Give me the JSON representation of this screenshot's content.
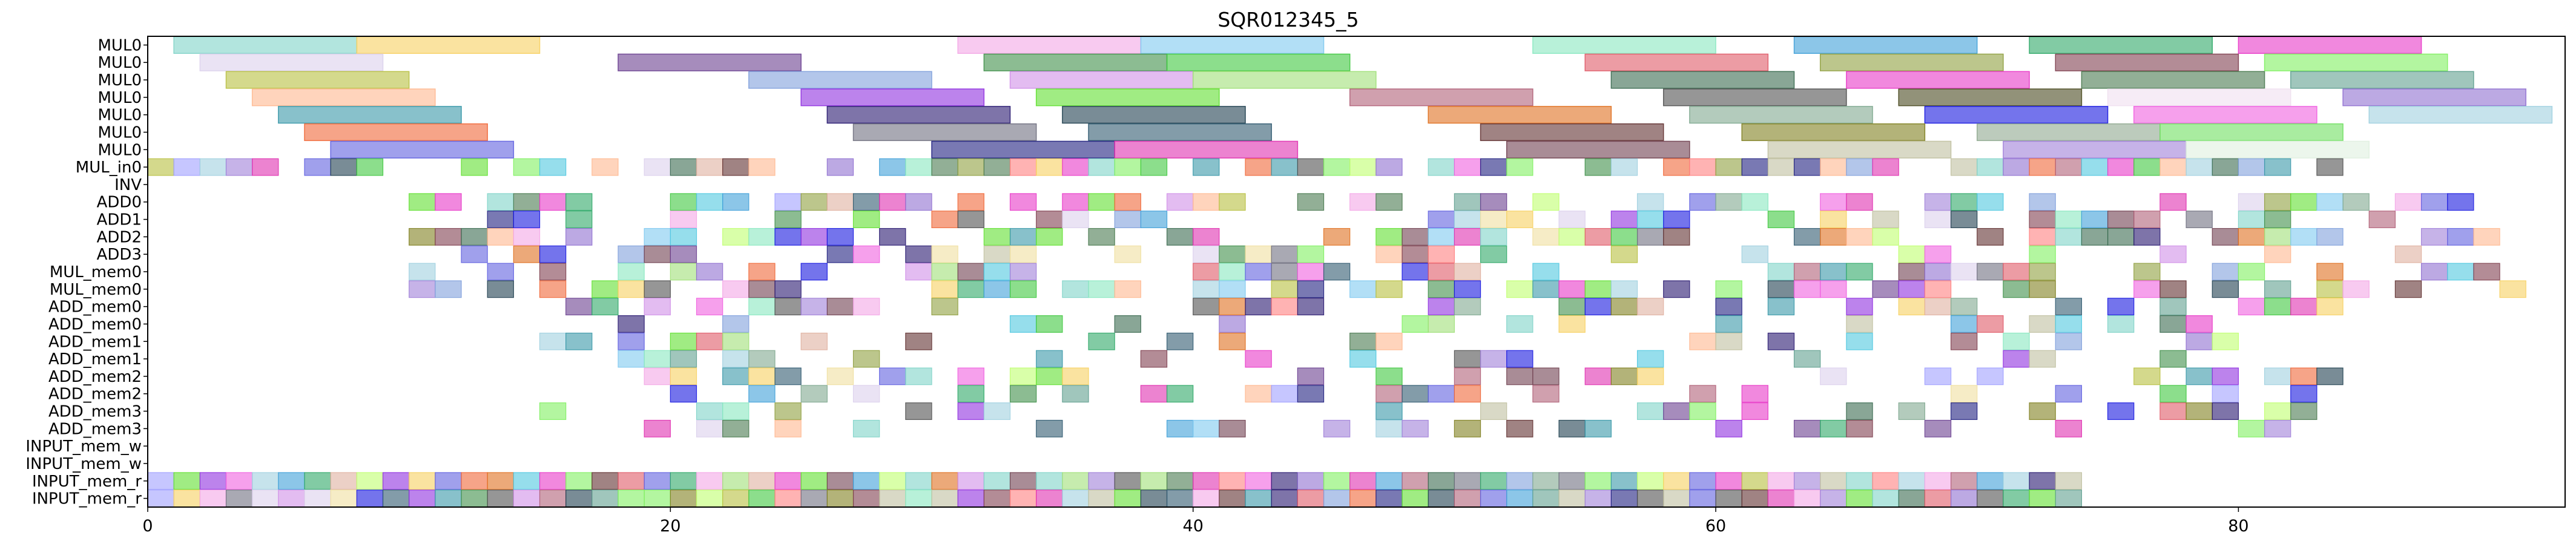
{
  "chart_data": {
    "type": "gantt",
    "title": "SQR012345_5",
    "xlabel": "",
    "ylabel": "",
    "xlim": [
      0,
      92.5
    ],
    "xticks": [
      0,
      20,
      40,
      60,
      80
    ],
    "xtick_labels": [
      "0",
      "20",
      "40",
      "60",
      "80"
    ],
    "grid": false,
    "rows": [
      "MUL0",
      "MUL0",
      "MUL0",
      "MUL0",
      "MUL0",
      "MUL0",
      "MUL0",
      "MUL_in0",
      "INV",
      "ADD0",
      "ADD1",
      "ADD2",
      "ADD3",
      "MUL_mem0",
      "MUL_mem0",
      "ADD_mem0",
      "ADD_mem0",
      "ADD_mem1",
      "ADD_mem1",
      "ADD_mem2",
      "ADD_mem2",
      "ADD_mem3",
      "ADD_mem3",
      "INPUT_mem_w",
      "INPUT_mem_w",
      "INPUT_mem_r",
      "INPUT_mem_r"
    ],
    "bars": [
      {
        "row": 0,
        "start": 1,
        "end": 8,
        "color": "#7fd3c8"
      },
      {
        "row": 0,
        "start": 8,
        "end": 15,
        "color": "#f7d060"
      },
      {
        "row": 0,
        "start": 31,
        "end": 38,
        "color": "#f3a6e6"
      },
      {
        "row": 0,
        "start": 38,
        "end": 45,
        "color": "#7fc9f0"
      },
      {
        "row": 0,
        "start": 53,
        "end": 60,
        "color": "#88e8c0"
      },
      {
        "row": 0,
        "start": 63,
        "end": 70,
        "color": "#3fa0d8"
      },
      {
        "row": 0,
        "start": 72,
        "end": 79,
        "color": "#2fa868"
      },
      {
        "row": 0,
        "start": 80,
        "end": 87,
        "color": "#e838c8"
      },
      {
        "row": 1,
        "start": 2,
        "end": 9,
        "color": "#dcd0ec"
      },
      {
        "row": 1,
        "start": 18,
        "end": 25,
        "color": "#6a3f90"
      },
      {
        "row": 1,
        "start": 32,
        "end": 39,
        "color": "#40904a"
      },
      {
        "row": 1,
        "start": 39,
        "end": 46,
        "color": "#40c840"
      },
      {
        "row": 1,
        "start": 55,
        "end": 62,
        "color": "#e05a68"
      },
      {
        "row": 1,
        "start": 64,
        "end": 71,
        "color": "#90a040"
      },
      {
        "row": 1,
        "start": 73,
        "end": 80,
        "color": "#804050"
      },
      {
        "row": 1,
        "start": 81,
        "end": 88,
        "color": "#80f060"
      },
      {
        "row": 2,
        "start": 3,
        "end": 10,
        "color": "#b8c040"
      },
      {
        "row": 2,
        "start": 23,
        "end": 30,
        "color": "#80a0dc"
      },
      {
        "row": 2,
        "start": 33,
        "end": 40,
        "color": "#d090e8"
      },
      {
        "row": 2,
        "start": 40,
        "end": 47,
        "color": "#a0e078"
      },
      {
        "row": 2,
        "start": 56,
        "end": 63,
        "color": "#3a6a50"
      },
      {
        "row": 2,
        "start": 65,
        "end": 72,
        "color": "#e838c8"
      },
      {
        "row": 2,
        "start": 74,
        "end": 81,
        "color": "#4a7a50"
      },
      {
        "row": 2,
        "start": 82,
        "end": 89,
        "color": "#60a090"
      },
      {
        "row": 3,
        "start": 4,
        "end": 11,
        "color": "#ffb890"
      },
      {
        "row": 3,
        "start": 25,
        "end": 32,
        "color": "#9030e0"
      },
      {
        "row": 3,
        "start": 34,
        "end": 41,
        "color": "#60e030"
      },
      {
        "row": 3,
        "start": 46,
        "end": 53,
        "color": "#b06078"
      },
      {
        "row": 3,
        "start": 58,
        "end": 65,
        "color": "#505050"
      },
      {
        "row": 3,
        "start": 67,
        "end": 74,
        "color": "#4a4a20"
      },
      {
        "row": 3,
        "start": 75,
        "end": 82,
        "color": "#f0e0f0"
      },
      {
        "row": 3,
        "start": 84,
        "end": 91,
        "color": "#9070d0"
      },
      {
        "row": 4,
        "start": 5,
        "end": 12,
        "color": "#3898a8"
      },
      {
        "row": 4,
        "start": 26,
        "end": 33,
        "color": "#281870"
      },
      {
        "row": 4,
        "start": 35,
        "end": 42,
        "color": "#204050"
      },
      {
        "row": 4,
        "start": 49,
        "end": 56,
        "color": "#e07020"
      },
      {
        "row": 4,
        "start": 59,
        "end": 66,
        "color": "#80a890"
      },
      {
        "row": 4,
        "start": 68,
        "end": 75,
        "color": "#1818e0"
      },
      {
        "row": 4,
        "start": 76,
        "end": 83,
        "color": "#f060e0"
      },
      {
        "row": 4,
        "start": 85,
        "end": 92,
        "color": "#a0d0e0"
      },
      {
        "row": 5,
        "start": 6,
        "end": 13,
        "color": "#f06838"
      },
      {
        "row": 5,
        "start": 27,
        "end": 34,
        "color": "#707080"
      },
      {
        "row": 5,
        "start": 36,
        "end": 43,
        "color": "#305a70"
      },
      {
        "row": 5,
        "start": 51,
        "end": 58,
        "color": "#603030"
      },
      {
        "row": 5,
        "start": 61,
        "end": 68,
        "color": "#808020"
      },
      {
        "row": 5,
        "start": 70,
        "end": 77,
        "color": "#90a890"
      },
      {
        "row": 5,
        "start": 77,
        "end": 84,
        "color": "#70e060"
      },
      {
        "row": 6,
        "start": 7,
        "end": 14,
        "color": "#6060e0"
      },
      {
        "row": 6,
        "start": 30,
        "end": 37,
        "color": "#202080"
      },
      {
        "row": 6,
        "start": 37,
        "end": 44,
        "color": "#e030b0"
      },
      {
        "row": 6,
        "start": 52,
        "end": 59,
        "color": "#704050"
      },
      {
        "row": 6,
        "start": 62,
        "end": 69,
        "color": "#c0c0a0"
      },
      {
        "row": 6,
        "start": 71,
        "end": 78,
        "color": "#a080d8"
      },
      {
        "row": 6,
        "start": 78,
        "end": 85,
        "color": "#e0f0e0"
      }
    ],
    "cell_rows": [
      7,
      9,
      10,
      11,
      12,
      13,
      14,
      15,
      16,
      17,
      18,
      19,
      20,
      21,
      22,
      25,
      26
    ],
    "cell_density": [
      0.72,
      0.62,
      0.55,
      0.5,
      0.45,
      0.5,
      0.6,
      0.5,
      0.4,
      0.3,
      0.25,
      0.35,
      0.4,
      0.35,
      0.3,
      1,
      1
    ],
    "cell_extent": [
      [
        0,
        85
      ],
      [
        9,
        89
      ],
      [
        12,
        86
      ],
      [
        10,
        90
      ],
      [
        12,
        90
      ],
      [
        10,
        90
      ],
      [
        10,
        91
      ],
      [
        16,
        85
      ],
      [
        18,
        80
      ],
      [
        13,
        80
      ],
      [
        15,
        78
      ],
      [
        13,
        85
      ],
      [
        20,
        84
      ],
      [
        13,
        83
      ],
      [
        18,
        83
      ],
      [
        0,
        74
      ],
      [
        0,
        74
      ]
    ],
    "palette": [
      "#7fd3c8",
      "#f7d060",
      "#f3a6e6",
      "#7fc9f0",
      "#88e8c0",
      "#3fa0d8",
      "#2fa868",
      "#e838c8",
      "#dcd0ec",
      "#6a3f90",
      "#40904a",
      "#40c840",
      "#e05a68",
      "#90a040",
      "#804050",
      "#80f060",
      "#b8c040",
      "#80a0dc",
      "#d090e8",
      "#a0e078",
      "#3a6a50",
      "#4a7a50",
      "#60a090",
      "#ffb890",
      "#9030e0",
      "#60e030",
      "#b06078",
      "#505050",
      "#9070d0",
      "#3898a8",
      "#281870",
      "#204050",
      "#e07020",
      "#80a890",
      "#1818e0",
      "#f060e0",
      "#a0d0e0",
      "#f06838",
      "#707080",
      "#305a70",
      "#603030",
      "#808020",
      "#6060e0",
      "#202080",
      "#e030b0",
      "#704050",
      "#c0c0a0",
      "#a080d8",
      "#f0e0a0",
      "#50c8e0",
      "#ff8080",
      "#c0ff70",
      "#e0b0a0",
      "#a0a0ff"
    ]
  }
}
